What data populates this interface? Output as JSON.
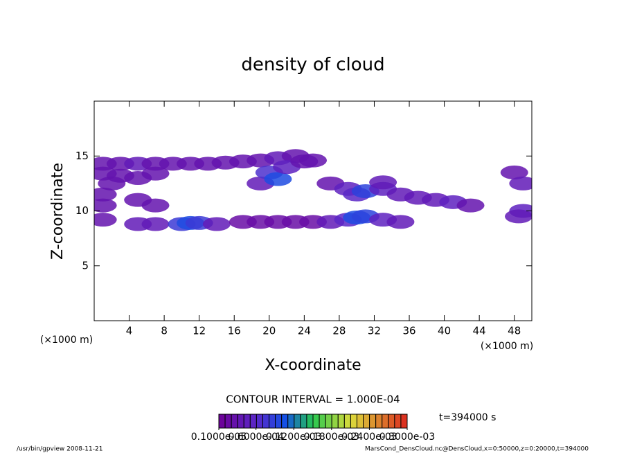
{
  "chart_data": {
    "type": "contour",
    "title": "density of cloud",
    "x_label": "X-coordinate",
    "y_label": "Z-coordinate",
    "x_unit": "(×1000 m)",
    "xlim": [
      0,
      50
    ],
    "ylim": [
      0,
      20
    ],
    "xticks": [
      4,
      8,
      12,
      16,
      20,
      24,
      28,
      32,
      36,
      40,
      44,
      48
    ],
    "yticks": [
      5,
      10,
      15
    ],
    "x": [
      1,
      3,
      5,
      7,
      9,
      11,
      13,
      15,
      17,
      19,
      21,
      23,
      25,
      1,
      3,
      5,
      7,
      19,
      20,
      21,
      22,
      24,
      27,
      29,
      30,
      31,
      33,
      33,
      35,
      37,
      39,
      41,
      43,
      1,
      5,
      7,
      10,
      11,
      12,
      14,
      17,
      19,
      21,
      23,
      25,
      27,
      29,
      30,
      31,
      33,
      35,
      1,
      1,
      2,
      5,
      7,
      48,
      49,
      49,
      48.5
    ],
    "y": [
      14.3,
      14.3,
      14.3,
      14.3,
      14.3,
      14.3,
      14.3,
      14.4,
      14.5,
      14.6,
      14.8,
      15,
      14.6,
      13.4,
      13.2,
      13,
      13.4,
      12.5,
      13.5,
      12.9,
      14,
      14.5,
      12.5,
      12,
      11.5,
      11.8,
      12,
      12.6,
      11.5,
      11.2,
      11,
      10.8,
      10.5,
      9.2,
      8.8,
      8.8,
      8.8,
      8.9,
      8.9,
      8.8,
      9,
      9,
      9,
      9,
      9,
      9,
      9.2,
      9.4,
      9.5,
      9.2,
      9,
      10.5,
      11.5,
      12.5,
      11,
      10.5,
      13.5,
      12.5,
      10,
      9.5
    ],
    "values": [
      3e-05,
      3e-05,
      4e-05,
      3e-05,
      3e-05,
      3e-05,
      3e-05,
      3e-05,
      3e-05,
      3e-05,
      4e-05,
      3e-05,
      3e-05,
      3e-05,
      3e-05,
      3e-05,
      3e-05,
      4e-05,
      7e-05,
      0.0001,
      5e-05,
      3e-05,
      3e-05,
      5e-05,
      6e-05,
      9e-05,
      5e-05,
      4e-05,
      4e-05,
      4e-05,
      4e-05,
      5e-05,
      3e-05,
      3e-05,
      4e-05,
      4e-05,
      8e-05,
      0.0001,
      8e-05,
      4e-05,
      2e-05,
      2e-05,
      2e-05,
      2e-05,
      2e-05,
      4e-05,
      6e-05,
      0.0001,
      9e-05,
      5e-05,
      4e-05,
      3e-05,
      3e-05,
      3e-05,
      3e-05,
      3e-05,
      3e-05,
      4e-05,
      5e-05,
      4e-05
    ],
    "contour_interval": "CONTOUR INTERVAL = 1.000E-04",
    "time_label": "t=394000 s",
    "colorbar": {
      "lim": [
        1e-06,
        0.0003
      ],
      "ticks": [
        {
          "value": 1e-06,
          "label": "0.1000e-05"
        },
        {
          "value": 6e-05,
          "label": "0.6000e-04"
        },
        {
          "value": 0.00012,
          "label": "0.1200e-03"
        },
        {
          "value": 0.00018,
          "label": "0.1800e-03"
        },
        {
          "value": 0.00024,
          "label": "0.2400e-03"
        },
        {
          "value": 0.0003,
          "label": "0.3000e-03"
        }
      ]
    },
    "footer_left": "/usr/bin/gpview  2008-11-21",
    "footer_right": "MarsCond_DensCloud.nc@DensCloud,x=0:50000,z=0:20000,t=394000"
  }
}
